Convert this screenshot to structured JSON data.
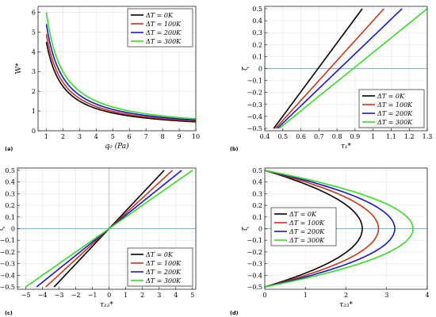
{
  "chart_data": [
    {
      "panel": "(a)",
      "type": "line",
      "xlabel": "q0 (Pa)",
      "ylabel": "W*",
      "xlim": [
        0.5,
        10
      ],
      "ylim": [
        0,
        6.3
      ],
      "xticks": [
        1,
        2,
        3,
        4,
        5,
        6,
        7,
        8,
        9,
        10
      ],
      "yticks": [
        0,
        1,
        2,
        3,
        4,
        5,
        6
      ],
      "grid": true,
      "legend_position": "top-right",
      "series": [
        {
          "name": "ΔT = 0K",
          "color": "#000000",
          "x": [
            1,
            1.5,
            2,
            2.5,
            3,
            4,
            5,
            6,
            7,
            8,
            9,
            10
          ],
          "y": [
            4.5,
            2.75,
            2.0,
            1.6,
            1.35,
            1.0,
            0.82,
            0.7,
            0.6,
            0.53,
            0.47,
            0.43
          ]
        },
        {
          "name": "ΔT = 100K",
          "color": "#cc3311",
          "x": [
            1,
            1.5,
            2,
            2.5,
            3,
            4,
            5,
            6,
            7,
            8,
            9,
            10
          ],
          "y": [
            4.9,
            3.0,
            2.2,
            1.75,
            1.48,
            1.1,
            0.9,
            0.76,
            0.66,
            0.58,
            0.52,
            0.48
          ]
        },
        {
          "name": "ΔT = 200K",
          "color": "#1515d0",
          "x": [
            1,
            1.5,
            2,
            2.5,
            3,
            4,
            5,
            6,
            7,
            8,
            9,
            10
          ],
          "y": [
            5.4,
            3.3,
            2.4,
            1.92,
            1.62,
            1.2,
            0.98,
            0.83,
            0.72,
            0.63,
            0.57,
            0.52
          ]
        },
        {
          "name": "ΔT = 300K",
          "color": "#33dd22",
          "x": [
            1,
            1.5,
            2,
            2.5,
            3,
            4,
            5,
            6,
            7,
            8,
            9,
            10
          ],
          "y": [
            6.0,
            3.6,
            2.6,
            2.1,
            1.76,
            1.32,
            1.07,
            0.9,
            0.78,
            0.69,
            0.62,
            0.57
          ]
        }
      ]
    },
    {
      "panel": "(b)",
      "type": "line",
      "xlabel": "τ1*",
      "ylabel": "ζ",
      "xlim": [
        0.4,
        1.3
      ],
      "ylim": [
        -0.52,
        0.52
      ],
      "xticks": [
        0.4,
        0.5,
        0.6,
        0.7,
        0.8,
        0.9,
        1,
        1.1,
        1.2,
        1.3
      ],
      "yticks": [
        -0.5,
        -0.4,
        -0.3,
        -0.2,
        -0.1,
        0,
        0.1,
        0.2,
        0.3,
        0.4,
        0.5
      ],
      "grid": true,
      "legend_position": "bottom-right",
      "series": [
        {
          "name": "ΔT = 0K",
          "color": "#000000",
          "x": [
            0.45,
            0.94
          ],
          "y": [
            -0.5,
            0.5
          ]
        },
        {
          "name": "ΔT = 100K",
          "color": "#cc3311",
          "x": [
            0.46,
            1.06
          ],
          "y": [
            -0.5,
            0.5
          ]
        },
        {
          "name": "ΔT = 200K",
          "color": "#1515d0",
          "x": [
            0.47,
            1.16
          ],
          "y": [
            -0.5,
            0.5
          ]
        },
        {
          "name": "ΔT = 300K",
          "color": "#33dd22",
          "x": [
            0.48,
            1.3
          ],
          "y": [
            -0.5,
            0.5
          ]
        }
      ]
    },
    {
      "panel": "(c)",
      "type": "line",
      "xlabel": "τ12*",
      "ylabel": "ζ",
      "xlim": [
        -5.5,
        5.2
      ],
      "ylim": [
        -0.52,
        0.52
      ],
      "xticks": [
        -5,
        -4,
        -3,
        -2,
        -1,
        0,
        1,
        2,
        3,
        4,
        5
      ],
      "yticks": [
        -0.5,
        -0.4,
        -0.3,
        -0.2,
        -0.1,
        0,
        0.1,
        0.2,
        0.3,
        0.4,
        0.5
      ],
      "grid": true,
      "legend_position": "bottom-right",
      "series": [
        {
          "name": "ΔT = 0K",
          "color": "#000000",
          "x": [
            -3.3,
            3.3
          ],
          "y": [
            -0.5,
            0.5
          ]
        },
        {
          "name": "ΔT = 100K",
          "color": "#cc3311",
          "x": [
            -3.8,
            3.8
          ],
          "y": [
            -0.5,
            0.5
          ]
        },
        {
          "name": "ΔT = 200K",
          "color": "#1515d0",
          "x": [
            -4.35,
            4.35
          ],
          "y": [
            -0.5,
            0.5
          ]
        },
        {
          "name": "ΔT = 300K",
          "color": "#33dd22",
          "x": [
            -5.0,
            5.0
          ],
          "y": [
            -0.5,
            0.5
          ]
        }
      ]
    },
    {
      "panel": "(d)",
      "type": "line",
      "xlabel": "τ23*",
      "ylabel": "ζ",
      "xlim": [
        0,
        4
      ],
      "ylim": [
        -0.52,
        0.52
      ],
      "xticks": [
        0,
        1,
        2,
        3,
        4
      ],
      "yticks": [
        -0.5,
        -0.4,
        -0.3,
        -0.2,
        -0.1,
        0,
        0.1,
        0.2,
        0.3,
        0.4,
        0.5
      ],
      "grid": true,
      "legend_position": "top-left",
      "series": [
        {
          "name": "ΔT = 0K",
          "color": "#000000",
          "peak_x": 2.4
        },
        {
          "name": "ΔT = 100K",
          "color": "#cc3311",
          "peak_x": 2.8
        },
        {
          "name": "ΔT = 200K",
          "color": "#1515d0",
          "peak_x": 3.2
        },
        {
          "name": "ΔT = 300K",
          "color": "#33dd22",
          "peak_x": 3.65
        }
      ]
    }
  ]
}
